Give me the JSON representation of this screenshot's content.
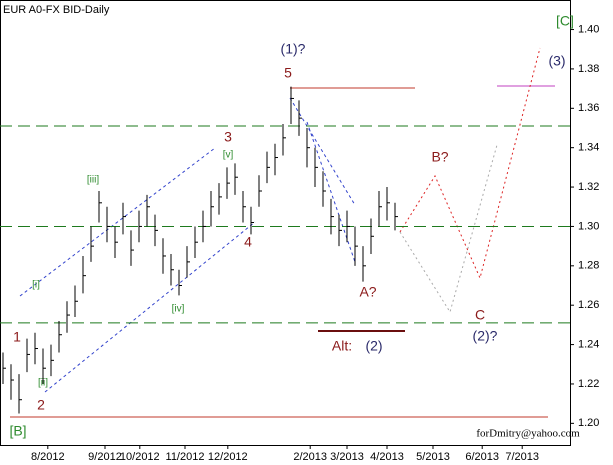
{
  "chart_data": {
    "type": "ohlc",
    "title": "EUR A0-FX BID-Daily",
    "close": [
      1.228,
      1.222,
      1.212,
      1.235,
      1.238,
      1.228,
      1.232,
      1.245,
      1.255,
      1.262,
      1.275,
      1.29,
      1.312,
      1.3,
      1.292,
      1.305,
      1.288,
      1.3,
      1.31,
      1.298,
      1.285,
      1.278,
      1.27,
      1.282,
      1.292,
      1.3,
      1.31,
      1.315,
      1.322,
      1.325,
      1.31,
      1.302,
      1.318,
      1.33,
      1.335,
      1.345,
      1.365,
      1.355,
      1.34,
      1.33,
      1.318,
      1.305,
      1.298,
      1.3,
      1.29,
      1.28,
      1.295,
      1.31,
      1.312,
      1.305
    ],
    "high": [
      1.236,
      1.23,
      1.225,
      1.243,
      1.246,
      1.238,
      1.24,
      1.252,
      1.262,
      1.27,
      1.285,
      1.3,
      1.318,
      1.31,
      1.3,
      1.312,
      1.298,
      1.308,
      1.316,
      1.306,
      1.294,
      1.286,
      1.278,
      1.29,
      1.3,
      1.308,
      1.318,
      1.322,
      1.33,
      1.332,
      1.318,
      1.31,
      1.326,
      1.338,
      1.342,
      1.352,
      1.371,
      1.364,
      1.35,
      1.34,
      1.328,
      1.314,
      1.306,
      1.308,
      1.3,
      1.29,
      1.304,
      1.318,
      1.32,
      1.312
    ],
    "low": [
      1.22,
      1.212,
      1.205,
      1.226,
      1.23,
      1.22,
      1.224,
      1.236,
      1.246,
      1.254,
      1.266,
      1.282,
      1.302,
      1.292,
      1.284,
      1.296,
      1.28,
      1.292,
      1.3,
      1.29,
      1.276,
      1.27,
      1.265,
      1.274,
      1.284,
      1.292,
      1.3,
      1.306,
      1.314,
      1.316,
      1.302,
      1.296,
      1.31,
      1.322,
      1.326,
      1.336,
      1.352,
      1.346,
      1.33,
      1.32,
      1.31,
      1.296,
      1.29,
      1.292,
      1.28,
      1.272,
      1.286,
      1.3,
      1.303,
      1.298
    ],
    "color": "#000000",
    "xlim": [
      -0.375,
      70.875
    ],
    "xticks": [
      {
        "value": 5.6,
        "label": "8/2012"
      },
      {
        "value": 12.75,
        "label": "9/2012"
      },
      {
        "value": 17.1,
        "label": "10/2012"
      },
      {
        "value": 22.75,
        "label": "11/2012"
      },
      {
        "value": 28.1,
        "label": "12/2012"
      },
      {
        "value": 38.4,
        "label": "2/2013"
      },
      {
        "value": 43,
        "label": "3/2013"
      },
      {
        "value": 48,
        "label": "4/2013"
      },
      {
        "value": 53.75,
        "label": "5/2013"
      },
      {
        "value": 59.9,
        "label": "6/2013"
      },
      {
        "value": 64.9,
        "label": "7/2013"
      }
    ],
    "ylim": [
      1.189,
      1.415
    ],
    "yticks": [
      {
        "value": 1.2,
        "label": "1.20"
      },
      1.22,
      1.24,
      1.26,
      1.28,
      {
        "value": 1.3,
        "label": "1.30"
      },
      1.32,
      1.34,
      1.36,
      1.38,
      {
        "value": 1.4,
        "label": "1.40"
      }
    ],
    "levels": [
      1.351,
      1.3,
      1.251
    ],
    "level_color": "#1e7a1e",
    "annotations": [
      "[C]",
      "(3)",
      "(1)?",
      "5",
      "3",
      "[v]",
      "[iii]",
      "[i]",
      "[ii]",
      "[iv]",
      "4",
      "1",
      "2",
      "[B]",
      "B?",
      "A?",
      "C",
      "(2)?",
      "Alt:",
      "(2)"
    ],
    "watermark": "forDmitry@yahoo.com"
  }
}
